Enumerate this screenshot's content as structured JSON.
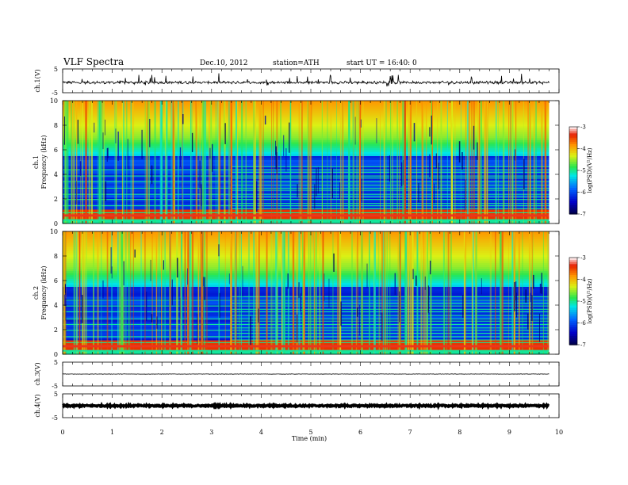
{
  "header": {
    "title": "VLF Spectra",
    "date": "Dec.10, 2012",
    "station": "station=ATH",
    "start": "start  UT =   16:40: 0"
  },
  "chart_data": [
    {
      "type": "line",
      "id": "ch1",
      "ylabel": "ch.1(V)",
      "ylim": [
        -5,
        5
      ],
      "yticks": [
        "5",
        "-5"
      ],
      "xlim": [
        0,
        10
      ],
      "level": -0.7
    },
    {
      "type": "heatmap",
      "id": "spec1",
      "ylabel_top": "ch.1",
      "ylabel": "Frequency  (kHz)",
      "ylim": [
        0,
        10
      ],
      "yticks": [
        "0",
        "2",
        "4",
        "6",
        "8",
        "10"
      ],
      "xlim": [
        0,
        9.8
      ],
      "colorbar": {
        "label": "log(PSD)(V²/Hz)",
        "range": [
          -7,
          -3
        ],
        "ticks": [
          "-3",
          "-4",
          "-5",
          "-6",
          "-7"
        ]
      }
    },
    {
      "type": "heatmap",
      "id": "spec2",
      "ylabel_top": "ch.2",
      "ylabel": "Frequency  (kHz)",
      "ylim": [
        0,
        10
      ],
      "yticks": [
        "0",
        "2",
        "4",
        "6",
        "8",
        "10"
      ],
      "xlim": [
        0,
        9.8
      ],
      "colorbar": {
        "label": "log(PSD)(V²/Hz)",
        "range": [
          -7,
          -3
        ],
        "ticks": [
          "-3",
          "-4",
          "-5",
          "-6",
          "-7"
        ]
      }
    },
    {
      "type": "line",
      "id": "ch3",
      "ylabel": "ch.3(V)",
      "ylim": [
        -5,
        5
      ],
      "yticks": [
        "5",
        "-5"
      ],
      "xlim": [
        0,
        10
      ],
      "level": 0.0
    },
    {
      "type": "line",
      "id": "ch4",
      "ylabel": "ch.4(V)",
      "ylim": [
        -5,
        5
      ],
      "yticks": [
        "5",
        "-5"
      ],
      "xlim": [
        0,
        10
      ],
      "level": 0.0
    }
  ],
  "xaxis": {
    "label": "Time  (min)",
    "ticks": [
      "0",
      "1",
      "2",
      "3",
      "4",
      "5",
      "6",
      "7",
      "8",
      "9",
      "10"
    ]
  }
}
